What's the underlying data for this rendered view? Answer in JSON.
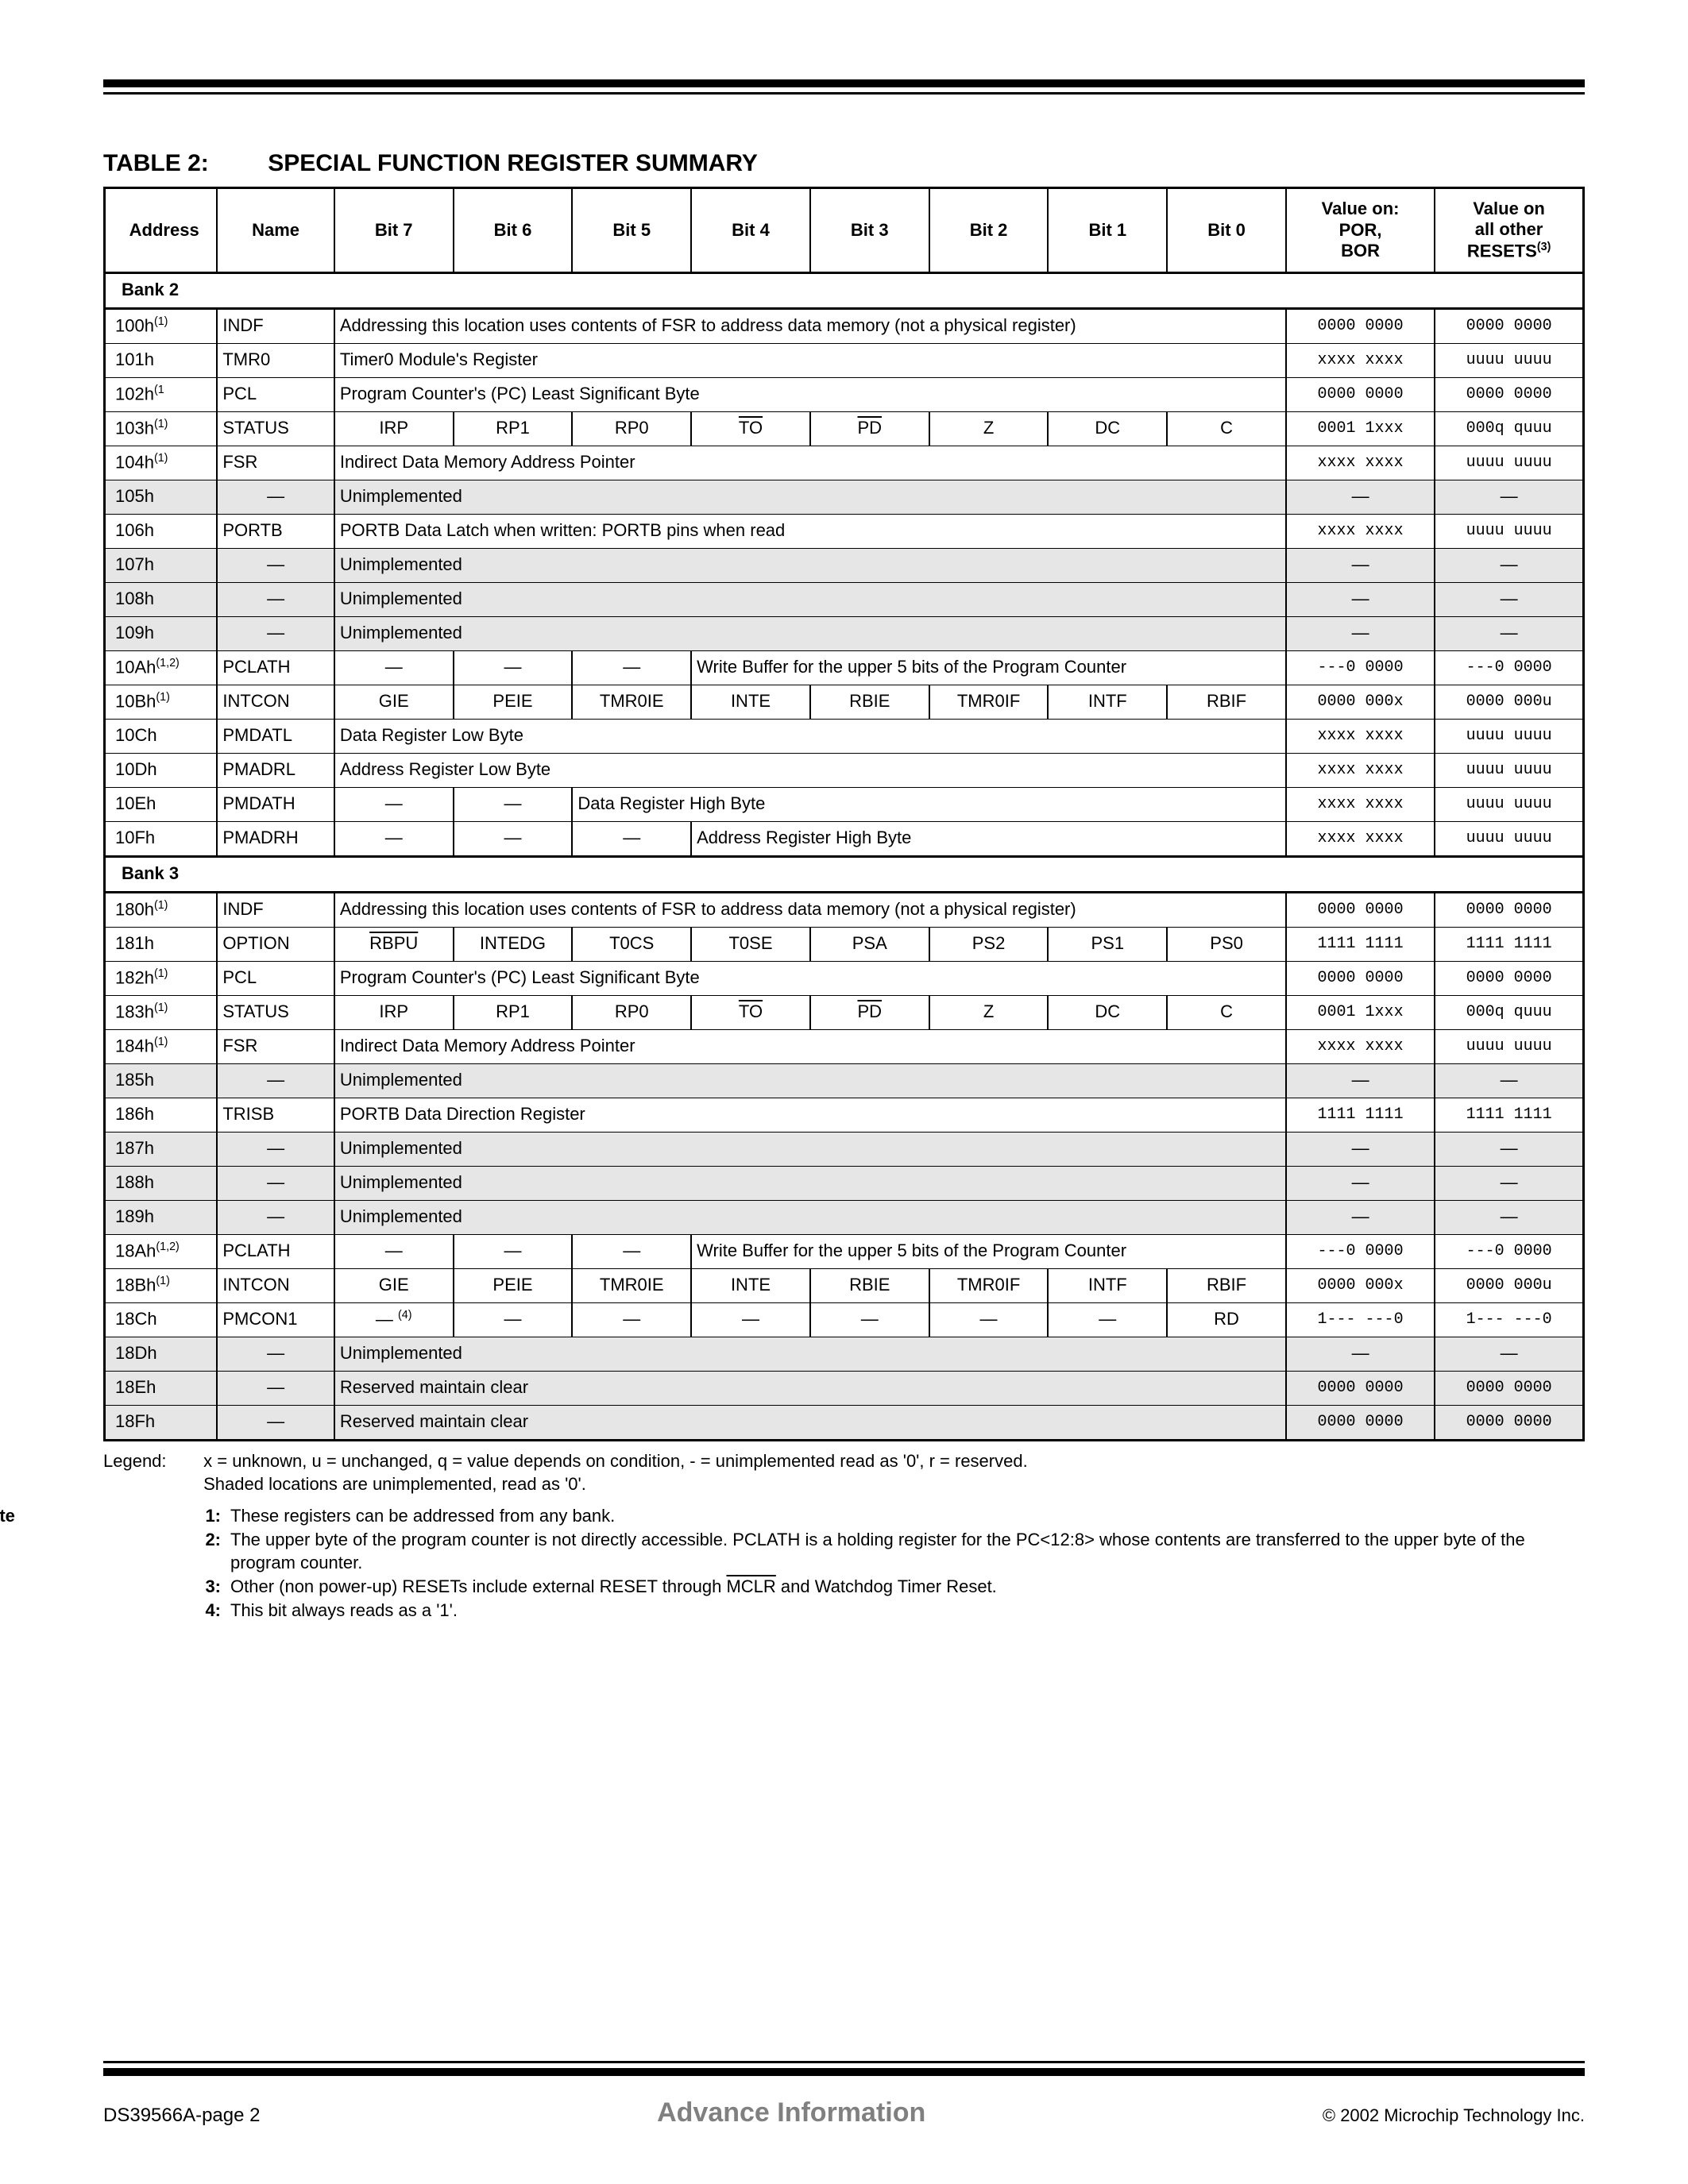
{
  "title_label": "TABLE 2:",
  "title_text": "SPECIAL FUNCTION REGISTER SUMMARY",
  "columns": [
    "Address",
    "Name",
    "Bit 7",
    "Bit 6",
    "Bit 5",
    "Bit 4",
    "Bit 3",
    "Bit 2",
    "Bit 1",
    "Bit 0"
  ],
  "por_header": [
    "Value on:",
    "POR,",
    "BOR"
  ],
  "reset_header": [
    "Value on",
    "all other",
    "RESETS"
  ],
  "reset_sup": "(3)",
  "bank2_label": "Bank 2",
  "bank3_label": "Bank 3",
  "note_sup_1": "(1)",
  "note_sup_12": "(1,2)",
  "note_sup_4": "(4)",
  "legend_label": "Legend:",
  "legend_line1": "x = unknown, u = unchanged, q = value depends on condition, - = unimplemented read as '0', r = reserved.",
  "legend_line2": "Shaded locations are unimplemented, read as '0'.",
  "note_label": "Note",
  "notes": [
    "These registers can be addressed from any bank.",
    "The upper byte of the program counter is not directly accessible. PCLATH is a holding register for the PC<12:8> whose contents are transferred to the upper byte of the program counter.",
    "Other (non power-up) RESETs include external RESET through MCLR and Watchdog Timer Reset.",
    "This bit always reads as a '1'."
  ],
  "note3_pre": "Other (non power-up) RESETs include external RESET through ",
  "note3_mclr": "MCLR",
  "note3_post": " and Watchdog Timer Reset.",
  "rows_bank2": [
    {
      "addr": "100h",
      "sup": "(1)",
      "name": "INDF",
      "span": "Addressing this location uses contents of FSR to address data memory (not a physical register)",
      "por": "0000 0000",
      "rst": "0000 0000"
    },
    {
      "addr": "101h",
      "name": "TMR0",
      "span": "Timer0 Module's Register",
      "por": "xxxx xxxx",
      "rst": "uuuu uuuu"
    },
    {
      "addr": "102h",
      "sup": "(1",
      "name": "PCL",
      "span": "Program Counter's (PC) Least Significant Byte",
      "por": "0000 0000",
      "rst": "0000 0000"
    },
    {
      "addr": "103h",
      "sup": "(1)",
      "name": "STATUS",
      "bits": [
        "IRP",
        "RP1",
        "RP0",
        "TO",
        "PD",
        "Z",
        "DC",
        "C"
      ],
      "ovl": [
        false,
        false,
        false,
        true,
        true,
        false,
        false,
        false
      ],
      "por": "0001 1xxx",
      "rst": "000q quuu"
    },
    {
      "addr": "104h",
      "sup": "(1)",
      "name": "FSR",
      "span": "Indirect Data Memory Address Pointer",
      "por": "xxxx xxxx",
      "rst": "uuuu uuuu"
    },
    {
      "addr": "105h",
      "name": "—",
      "span": "Unimplemented",
      "por": "—",
      "rst": "—",
      "shaded": true
    },
    {
      "addr": "106h",
      "name": "PORTB",
      "span": "PORTB Data Latch when written: PORTB pins when read",
      "por": "xxxx xxxx",
      "rst": "uuuu uuuu"
    },
    {
      "addr": "107h",
      "name": "—",
      "span": "Unimplemented",
      "por": "—",
      "rst": "—",
      "shaded": true
    },
    {
      "addr": "108h",
      "name": "—",
      "span": "Unimplemented",
      "por": "—",
      "rst": "—",
      "shaded": true
    },
    {
      "addr": "109h",
      "name": "—",
      "span": "Unimplemented",
      "por": "—",
      "rst": "—",
      "shaded": true
    },
    {
      "addr": "10Ah",
      "sup": "(1,2)",
      "name": "PCLATH",
      "bits3": [
        "—",
        "—",
        "—"
      ],
      "rest": "Write Buffer for the upper 5 bits of the Program Counter",
      "por": "---0 0000",
      "rst": "---0 0000"
    },
    {
      "addr": "10Bh",
      "sup": "(1)",
      "name": "INTCON",
      "bits": [
        "GIE",
        "PEIE",
        "TMR0IE",
        "INTE",
        "RBIE",
        "TMR0IF",
        "INTF",
        "RBIF"
      ],
      "por": "0000 000x",
      "rst": "0000 000u"
    },
    {
      "addr": "10Ch",
      "name": "PMDATL",
      "span": "Data Register Low Byte",
      "por": "xxxx xxxx",
      "rst": "uuuu uuuu"
    },
    {
      "addr": "10Dh",
      "name": "PMADRL",
      "span": "Address Register Low Byte",
      "por": "xxxx xxxx",
      "rst": "uuuu uuuu"
    },
    {
      "addr": "10Eh",
      "name": "PMDATH",
      "bits2": [
        "—",
        "—"
      ],
      "rest": "Data Register High Byte",
      "por": "xxxx xxxx",
      "rst": "uuuu uuuu"
    },
    {
      "addr": "10Fh",
      "name": "PMADRH",
      "bits3": [
        "—",
        "—",
        "—"
      ],
      "rest": "Address Register High Byte",
      "por": "xxxx xxxx",
      "rst": "uuuu uuuu"
    }
  ],
  "rows_bank3": [
    {
      "addr": "180h",
      "sup": "(1)",
      "name": "INDF",
      "span": "Addressing this location uses contents of FSR to address data memory (not a physical register)",
      "por": "0000 0000",
      "rst": "0000 0000"
    },
    {
      "addr": "181h",
      "name": "OPTION",
      "bits": [
        "RBPU",
        "INTEDG",
        "T0CS",
        "T0SE",
        "PSA",
        "PS2",
        "PS1",
        "PS0"
      ],
      "ovl": [
        true,
        false,
        false,
        false,
        false,
        false,
        false,
        false
      ],
      "por": "1111 1111",
      "rst": "1111 1111"
    },
    {
      "addr": "182h",
      "sup": "(1)",
      "name": "PCL",
      "span": "Program Counter's (PC)  Least Significant Byte",
      "por": "0000 0000",
      "rst": "0000 0000"
    },
    {
      "addr": "183h",
      "sup": "(1)",
      "name": "STATUS",
      "bits": [
        "IRP",
        "RP1",
        "RP0",
        "TO",
        "PD",
        "Z",
        "DC",
        "C"
      ],
      "ovl": [
        false,
        false,
        false,
        true,
        true,
        false,
        false,
        false
      ],
      "por": "0001 1xxx",
      "rst": "000q quuu"
    },
    {
      "addr": "184h",
      "sup": "(1)",
      "name": "FSR",
      "span": "Indirect Data Memory Address Pointer",
      "por": "xxxx xxxx",
      "rst": "uuuu uuuu"
    },
    {
      "addr": "185h",
      "name": "—",
      "span": "Unimplemented",
      "por": "—",
      "rst": "—",
      "shaded": true
    },
    {
      "addr": "186h",
      "name": "TRISB",
      "span": "PORTB Data Direction Register",
      "por": "1111 1111",
      "rst": "1111 1111"
    },
    {
      "addr": "187h",
      "name": "—",
      "span": "Unimplemented",
      "por": "—",
      "rst": "—",
      "shaded": true
    },
    {
      "addr": "188h",
      "name": "—",
      "span": "Unimplemented",
      "por": "—",
      "rst": "—",
      "shaded": true
    },
    {
      "addr": "189h",
      "name": "—",
      "span": "Unimplemented",
      "por": "—",
      "rst": "—",
      "shaded": true
    },
    {
      "addr": "18Ah",
      "sup": "(1,2)",
      "name": "PCLATH",
      "bits3": [
        "—",
        "—",
        "—"
      ],
      "rest": "Write Buffer for the upper 5 bits of the Program Counter",
      "por": "---0 0000",
      "rst": "---0 0000"
    },
    {
      "addr": "18Bh",
      "sup": "(1)",
      "name": "INTCON",
      "bits": [
        "GIE",
        "PEIE",
        "TMR0IE",
        "INTE",
        "RBIE",
        "TMR0IF",
        "INTF",
        "RBIF"
      ],
      "por": "0000 000x",
      "rst": "0000 000u"
    },
    {
      "addr": "18Ch",
      "name": "PMCON1",
      "bits": [
        "—  (4)",
        "—",
        "—",
        "—",
        "—",
        "—",
        "—",
        "RD"
      ],
      "sup4": true,
      "por": "1--- ---0",
      "rst": "1--- ---0"
    },
    {
      "addr": "18Dh",
      "name": "—",
      "span": "Unimplemented",
      "por": "—",
      "rst": "—",
      "shaded": true
    },
    {
      "addr": "18Eh",
      "name": "—",
      "span": "Reserved maintain clear",
      "por": "0000 0000",
      "rst": "0000 0000",
      "shaded": true
    },
    {
      "addr": "18Fh",
      "name": "—",
      "span": "Reserved maintain clear",
      "por": "0000 0000",
      "rst": "0000 0000",
      "shaded": true
    }
  ],
  "footer_left": "DS39566A-page 2",
  "footer_mid": "Advance Information",
  "footer_right": "© 2002 Microchip Technology Inc."
}
